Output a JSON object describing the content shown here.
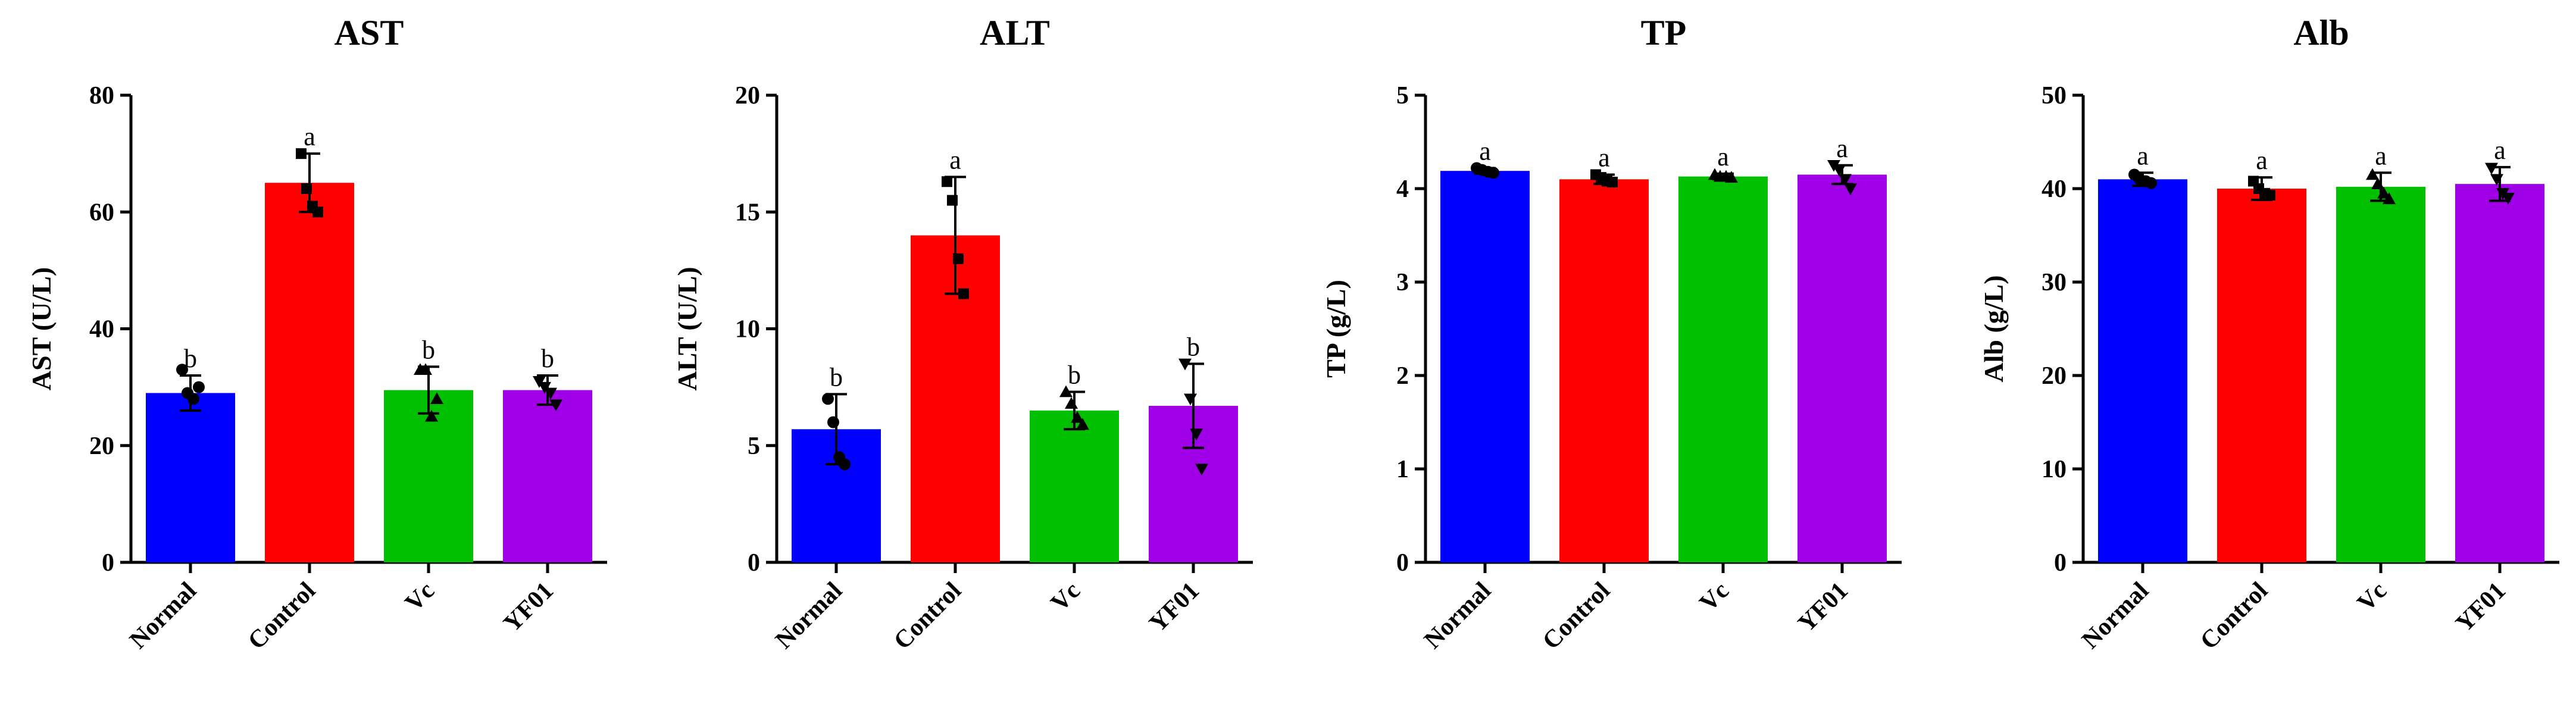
{
  "chart_data": [
    {
      "type": "bar",
      "title": "AST",
      "ylabel": "AST (U/L)",
      "categories": [
        "Normal",
        "Control",
        "Vc",
        "YF01"
      ],
      "values": [
        29,
        65,
        29.5,
        29.5
      ],
      "errors": [
        3,
        5,
        4,
        2.5
      ],
      "significance": [
        "b",
        "a",
        "b",
        "b"
      ],
      "points": [
        [
          33,
          29,
          28,
          30
        ],
        [
          70,
          64,
          61,
          60
        ],
        [
          33,
          33,
          25,
          28
        ],
        [
          31,
          30,
          29,
          27
        ]
      ],
      "point_markers": [
        "circle",
        "square",
        "triangle",
        "triangle-down"
      ],
      "ylim": [
        0,
        80
      ],
      "yticks": [
        "0",
        "20",
        "40",
        "60",
        "80"
      ],
      "colors": [
        "#0000ff",
        "#ff0000",
        "#00c000",
        "#a000e8"
      ]
    },
    {
      "type": "bar",
      "title": "ALT",
      "ylabel": "ALT (U/L)",
      "categories": [
        "Normal",
        "Control",
        "Vc",
        "YF01"
      ],
      "values": [
        5.7,
        14,
        6.5,
        6.7
      ],
      "errors": [
        1.5,
        2.5,
        0.8,
        1.8
      ],
      "significance": [
        "b",
        "a",
        "b",
        "b"
      ],
      "points": [
        [
          7,
          6,
          4.5,
          4.2
        ],
        [
          16.3,
          15.5,
          13,
          11.5
        ],
        [
          7.3,
          6.8,
          6.2,
          5.9
        ],
        [
          8.5,
          7,
          5.5,
          4
        ]
      ],
      "point_markers": [
        "circle",
        "square",
        "triangle",
        "triangle-down"
      ],
      "ylim": [
        0,
        20
      ],
      "yticks": [
        "0",
        "5",
        "10",
        "15",
        "20"
      ],
      "colors": [
        "#0000ff",
        "#ff0000",
        "#00c000",
        "#a000e8"
      ]
    },
    {
      "type": "bar",
      "title": "TP",
      "ylabel": "TP (g/L)",
      "categories": [
        "Normal",
        "Control",
        "Vc",
        "YF01"
      ],
      "values": [
        4.19,
        4.1,
        4.13,
        4.15
      ],
      "errors": [
        0.03,
        0.05,
        0.03,
        0.1
      ],
      "significance": [
        "a",
        "a",
        "a",
        "a"
      ],
      "points": [
        [
          4.22,
          4.2,
          4.18,
          4.17
        ],
        [
          4.15,
          4.12,
          4.08,
          4.07
        ],
        [
          4.15,
          4.13,
          4.13,
          4.12
        ],
        [
          4.25,
          4.2,
          4.1,
          4.0
        ]
      ],
      "point_markers": [
        "circle",
        "square",
        "triangle",
        "triangle-down"
      ],
      "ylim": [
        0,
        5
      ],
      "yticks": [
        "0",
        "1",
        "2",
        "3",
        "4",
        "5"
      ],
      "colors": [
        "#0000ff",
        "#ff0000",
        "#00c000",
        "#a000e8"
      ]
    },
    {
      "type": "bar",
      "title": "Alb",
      "ylabel": "Alb (g/L)",
      "categories": [
        "Normal",
        "Control",
        "Vc",
        "YF01"
      ],
      "values": [
        41,
        40,
        40.2,
        40.5
      ],
      "errors": [
        0.7,
        1.2,
        1.5,
        1.8
      ],
      "significance": [
        "a",
        "a",
        "a",
        "a"
      ],
      "points": [
        [
          41.5,
          41,
          40.8,
          40.6
        ],
        [
          40.8,
          40,
          39.5,
          39.3
        ],
        [
          41.5,
          40.5,
          39.5,
          38.9
        ],
        [
          42.2,
          41,
          39.5,
          39
        ]
      ],
      "point_markers": [
        "circle",
        "square",
        "triangle",
        "triangle-down"
      ],
      "ylim": [
        0,
        50
      ],
      "yticks": [
        "0",
        "10",
        "20",
        "30",
        "40",
        "50"
      ],
      "colors": [
        "#0000ff",
        "#ff0000",
        "#00c000",
        "#a000e8"
      ]
    }
  ]
}
